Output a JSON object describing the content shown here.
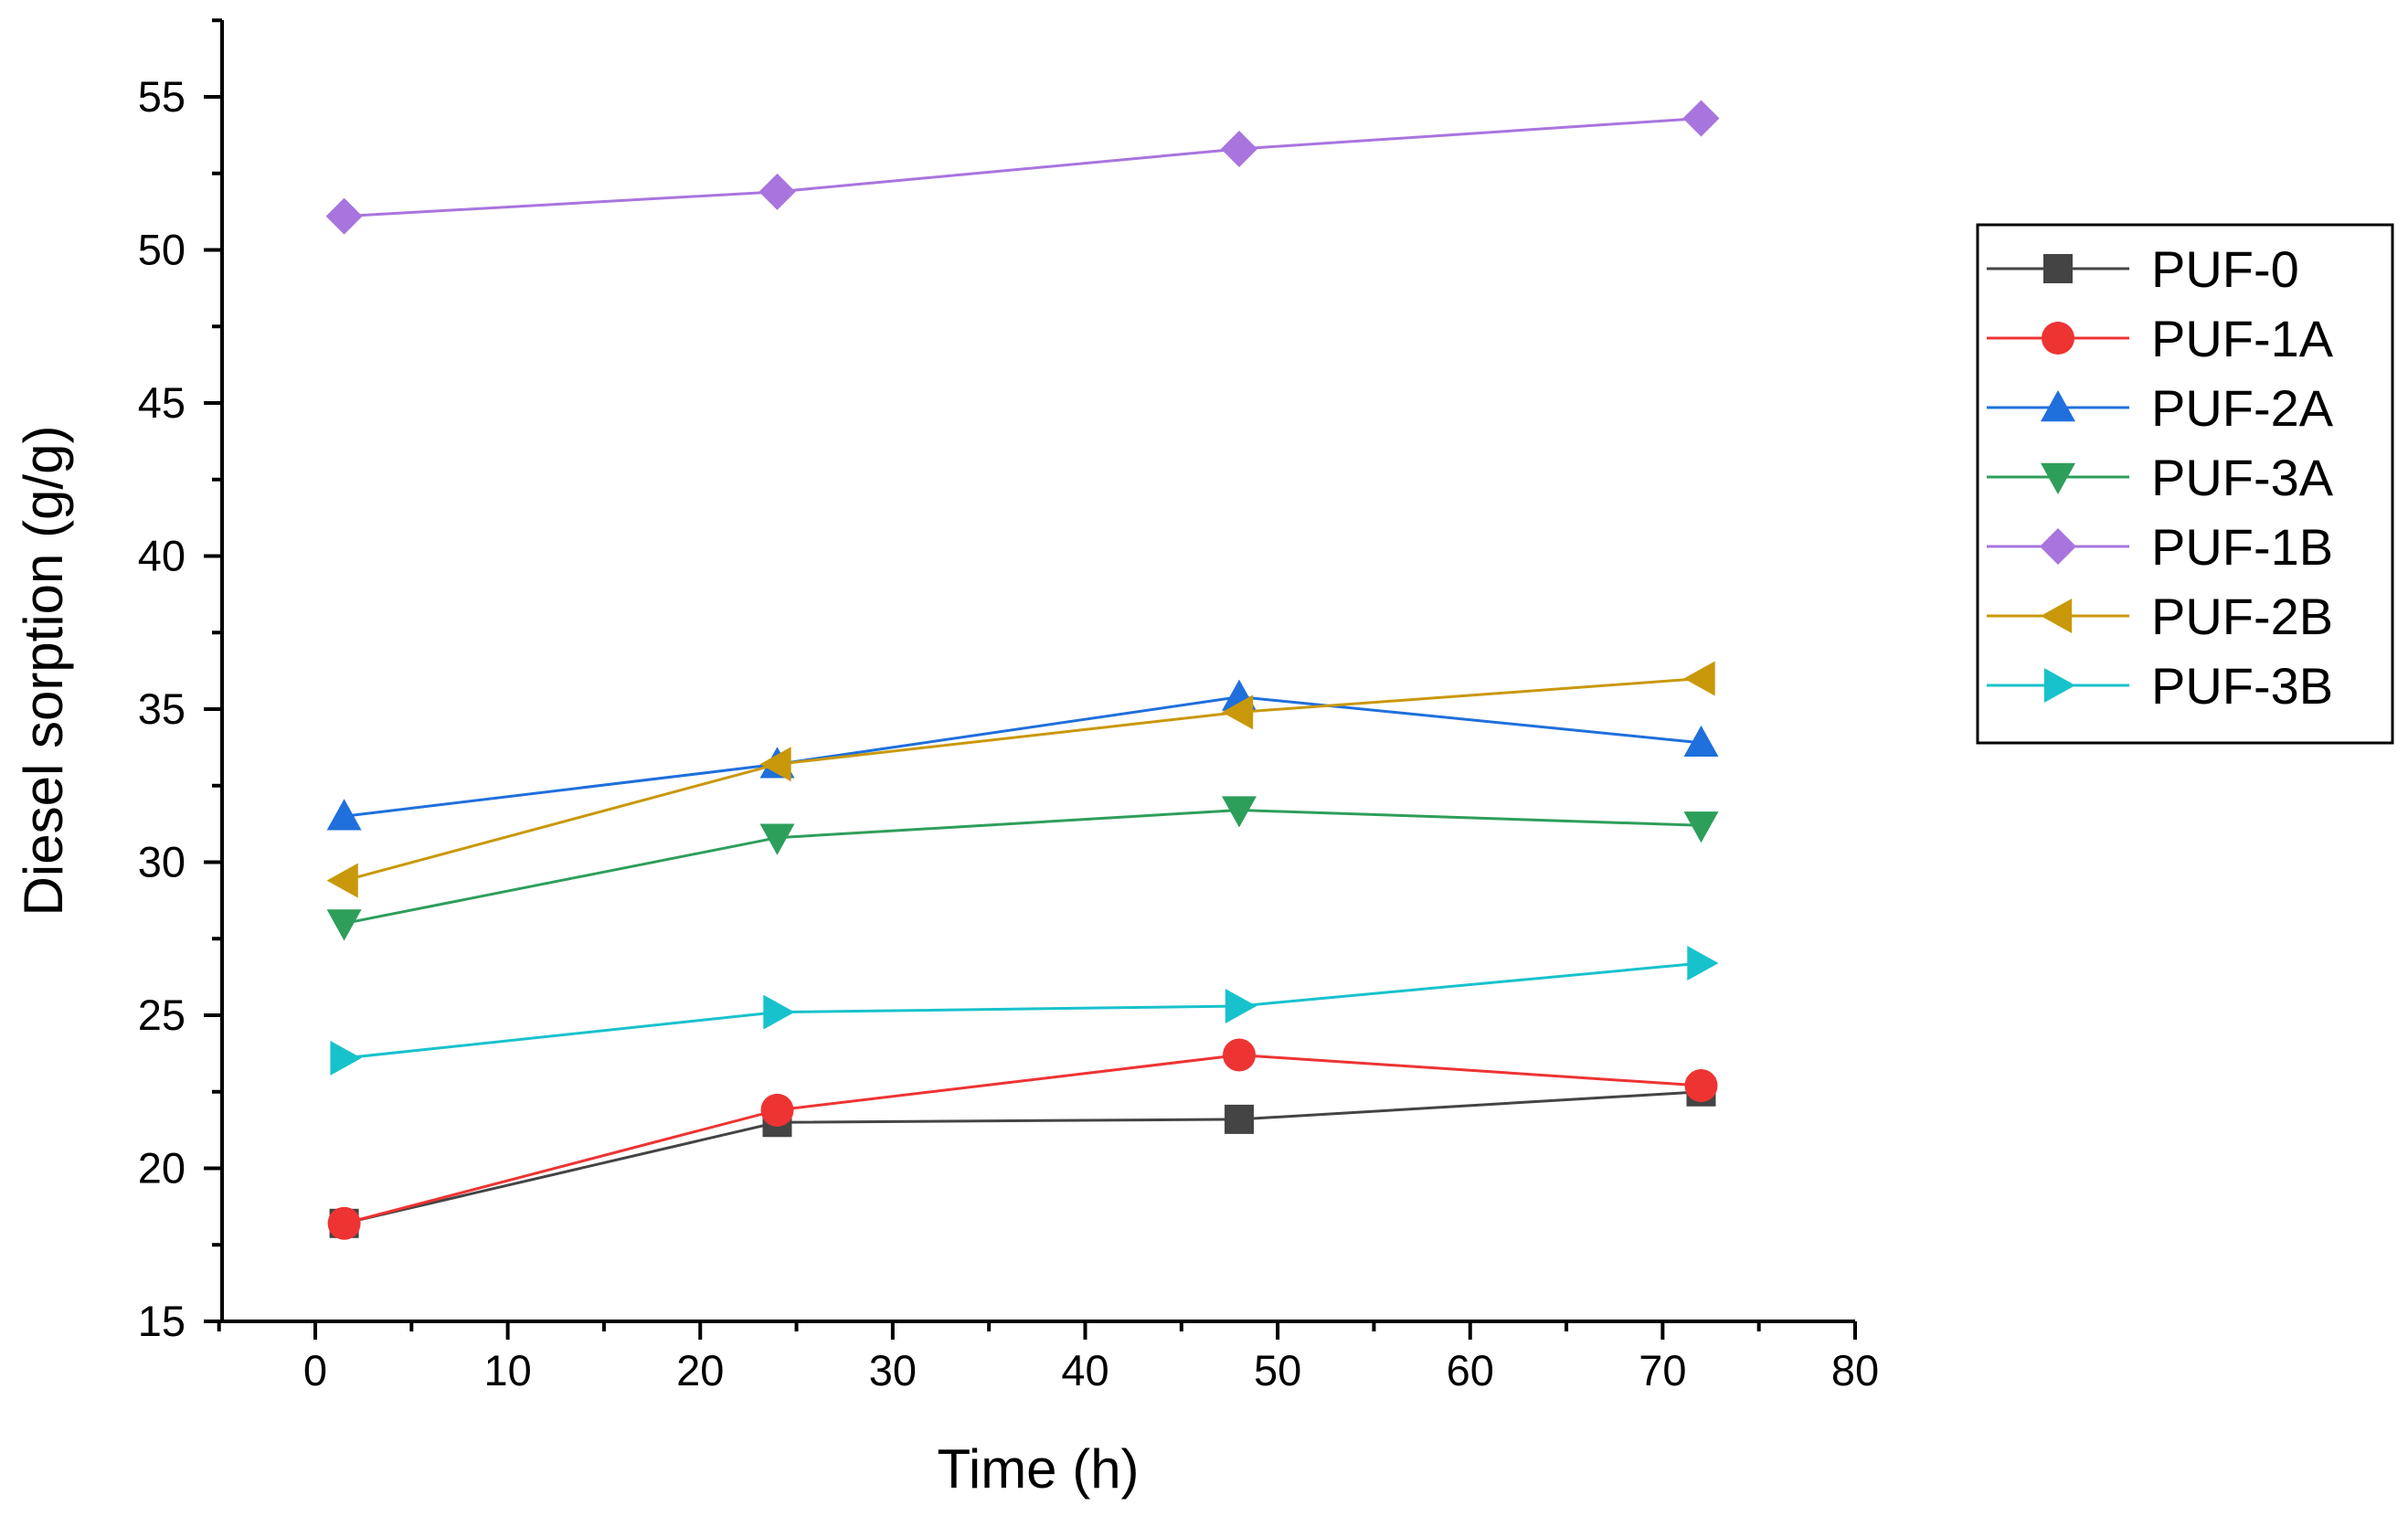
{
  "chart_data": {
    "type": "line",
    "title": "",
    "xlabel": "Time (h)",
    "ylabel": "Diesel sorption (g/g)",
    "xlim": [
      -5,
      80
    ],
    "ylim": [
      15,
      57.5
    ],
    "x_ticks": [
      0,
      10,
      20,
      30,
      40,
      50,
      60,
      70,
      80
    ],
    "y_ticks": [
      15,
      20,
      25,
      30,
      35,
      40,
      45,
      50,
      55
    ],
    "x_tick_labels": [
      "0",
      "10",
      "20",
      "30",
      "40",
      "50",
      "60",
      "70",
      "80"
    ],
    "y_tick_labels": [
      "15",
      "20",
      "25",
      "30",
      "35",
      "40",
      "45",
      "50",
      "55"
    ],
    "grid": false,
    "legend_position": "right",
    "x": [
      1.5,
      24,
      48,
      72
    ],
    "series": [
      {
        "name": "PUF-0",
        "marker": "square",
        "color": "#444444",
        "values": [
          18.2,
          21.5,
          21.6,
          22.5
        ]
      },
      {
        "name": "PUF-1A",
        "marker": "circle",
        "color": "#ee3333",
        "values": [
          18.2,
          21.9,
          23.7,
          22.7
        ]
      },
      {
        "name": "PUF-2A",
        "marker": "triangle-up",
        "color": "#1f6fdc",
        "values": [
          31.5,
          33.2,
          35.4,
          33.9
        ]
      },
      {
        "name": "PUF-3A",
        "marker": "triangle-down",
        "color": "#2e9e5b",
        "values": [
          28.0,
          30.8,
          31.7,
          31.2
        ]
      },
      {
        "name": "PUF-1B",
        "marker": "diamond",
        "color": "#a875de",
        "values": [
          51.1,
          51.9,
          53.3,
          54.3
        ]
      },
      {
        "name": "PUF-2B",
        "marker": "triangle-left",
        "color": "#c9980a",
        "values": [
          29.4,
          33.2,
          34.9,
          36.0
        ]
      },
      {
        "name": "PUF-3B",
        "marker": "triangle-right",
        "color": "#18c2cc",
        "values": [
          23.6,
          25.1,
          25.3,
          26.7
        ]
      }
    ]
  }
}
